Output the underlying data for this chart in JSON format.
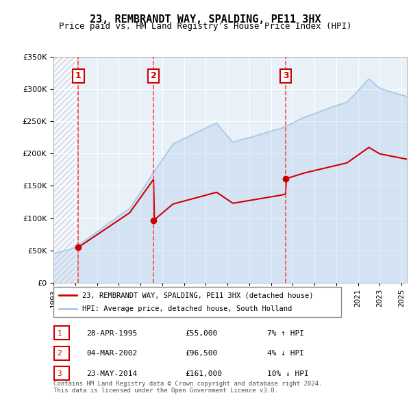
{
  "title": "23, REMBRANDT WAY, SPALDING, PE11 3HX",
  "subtitle": "Price paid vs. HM Land Registry's House Price Index (HPI)",
  "sales": [
    {
      "date": "1995-04-28",
      "price": 55000,
      "label": "1"
    },
    {
      "date": "2002-03-04",
      "price": 96500,
      "label": "2"
    },
    {
      "date": "2014-05-23",
      "price": 161000,
      "label": "3"
    }
  ],
  "legend_entries": [
    "23, REMBRANDT WAY, SPALDING, PE11 3HX (detached house)",
    "HPI: Average price, detached house, South Holland"
  ],
  "table_rows": [
    {
      "num": "1",
      "date": "28-APR-1995",
      "price": "£55,000",
      "hpi": "7% ↑ HPI"
    },
    {
      "num": "2",
      "date": "04-MAR-2002",
      "price": "£96,500",
      "hpi": "4% ↓ HPI"
    },
    {
      "num": "3",
      "date": "23-MAY-2014",
      "price": "£161,000",
      "hpi": "10% ↓ HPI"
    }
  ],
  "footer": "Contains HM Land Registry data © Crown copyright and database right 2024.\nThis data is licensed under the Open Government Licence v3.0.",
  "hpi_color": "#a8c8e8",
  "price_color": "#cc0000",
  "vline_color": "#ff4444",
  "label_box_color": "#cc0000",
  "hatch_color": "#d0d8e8",
  "plot_bg": "#e8f0f8",
  "ylim": [
    0,
    350000
  ],
  "yticks": [
    0,
    50000,
    100000,
    150000,
    200000,
    250000,
    300000,
    350000
  ],
  "xlim_start": 1993.0,
  "xlim_end": 2025.5
}
